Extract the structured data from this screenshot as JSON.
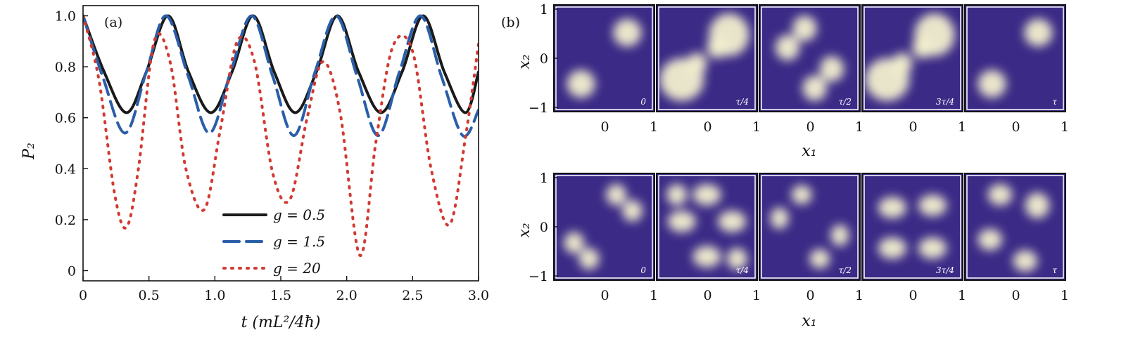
{
  "chart_data": [
    {
      "type": "line",
      "panel_label": "(a)",
      "xlabel": "t (mL²/4ħ)",
      "ylabel": "P₂",
      "xlim": [
        0,
        3.0
      ],
      "ylim": [
        -0.04,
        1.04
      ],
      "xticks": [
        "0",
        "0.5",
        "1.0",
        "1.5",
        "2.0",
        "2.5",
        "3.0"
      ],
      "yticks": [
        "0",
        "0.2",
        "0.4",
        "0.6",
        "0.8",
        "1.0"
      ],
      "legend_position": "lower-center",
      "series": [
        {
          "name": "g = 0.5",
          "style": "solid",
          "color": "#1a1a1a",
          "x": [
            0,
            0.16,
            0.33,
            0.48,
            0.645,
            0.8,
            0.97,
            1.13,
            1.29,
            1.45,
            1.61,
            1.77,
            1.93,
            2.09,
            2.26,
            2.42,
            2.58,
            2.74,
            2.9,
            3.0
          ],
          "y": [
            1.0,
            0.78,
            0.62,
            0.78,
            1.0,
            0.78,
            0.62,
            0.78,
            1.0,
            0.78,
            0.62,
            0.78,
            1.0,
            0.78,
            0.62,
            0.78,
            1.0,
            0.78,
            0.62,
            0.78
          ]
        },
        {
          "name": "g = 1.5",
          "style": "dashed",
          "color": "#2a5ea8",
          "x": [
            0,
            0.15,
            0.32,
            0.48,
            0.63,
            0.8,
            0.96,
            1.12,
            1.28,
            1.44,
            1.6,
            1.76,
            1.92,
            2.08,
            2.24,
            2.4,
            2.56,
            2.72,
            2.88,
            3.0
          ],
          "y": [
            1.0,
            0.76,
            0.54,
            0.78,
            1.0,
            0.76,
            0.54,
            0.78,
            1.0,
            0.76,
            0.53,
            0.78,
            1.0,
            0.76,
            0.53,
            0.78,
            1.0,
            0.76,
            0.53,
            0.63
          ]
        },
        {
          "name": "g = 20",
          "style": "dotted",
          "color": "#d03a32",
          "x": [
            0,
            0.12,
            0.24,
            0.33,
            0.42,
            0.54,
            0.66,
            0.78,
            0.92,
            1.04,
            1.17,
            1.3,
            1.44,
            1.57,
            1.7,
            1.82,
            1.95,
            2.1,
            2.22,
            2.35,
            2.5,
            2.64,
            2.78,
            2.9,
            3.0
          ],
          "y": [
            1.0,
            0.75,
            0.3,
            0.17,
            0.4,
            0.9,
            0.82,
            0.4,
            0.24,
            0.55,
            0.9,
            0.82,
            0.38,
            0.28,
            0.6,
            0.82,
            0.62,
            0.06,
            0.5,
            0.88,
            0.86,
            0.4,
            0.18,
            0.52,
            0.89
          ]
        }
      ]
    },
    {
      "type": "heatmap",
      "panel_label": "(b)",
      "xlabel": "x₁",
      "ylabel": "x₂",
      "xticks": [
        "0",
        "1"
      ],
      "yticks": [
        "1",
        "0",
        "−1"
      ],
      "colors": {
        "background": "#3b2a86",
        "peak": "#f2efcf"
      },
      "rows": [
        {
          "frames": [
            "0",
            "τ/4",
            "τ/2",
            "3τ/4",
            "τ"
          ]
        },
        {
          "frames": [
            "0",
            "τ/4",
            "τ/2",
            "3τ/4",
            "τ"
          ]
        }
      ]
    }
  ]
}
